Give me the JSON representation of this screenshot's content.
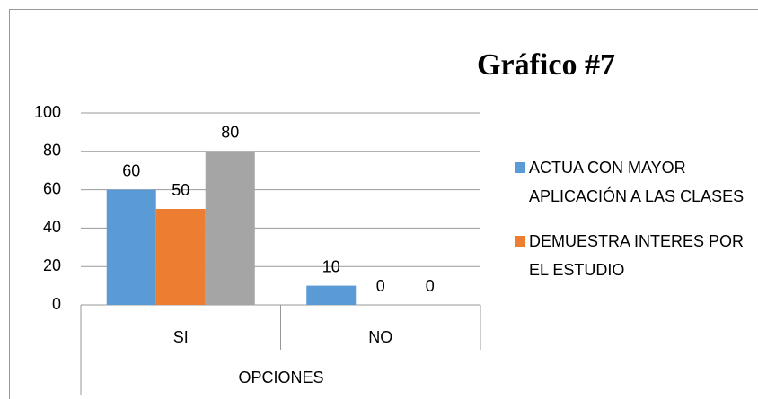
{
  "chart_data": {
    "type": "bar",
    "title": "Gráfico #7",
    "x_label": "OPCIONES",
    "categories": [
      "SI",
      "NO"
    ],
    "series": [
      {
        "name": "ACTUA CON MAYOR APLICACIÓN A LAS CLASES",
        "color": "#5b9bd5",
        "values": [
          60,
          10
        ]
      },
      {
        "name": "DEMUESTRA INTERES POR EL ESTUDIO",
        "color": "#ed7d31",
        "values": [
          50,
          0
        ]
      },
      {
        "name": null,
        "color": "#a5a5a5",
        "values": [
          80,
          0
        ]
      }
    ],
    "ylim": [
      0,
      100
    ],
    "yticks": [
      0,
      20,
      40,
      60,
      80,
      100
    ],
    "grid": true,
    "legend": "right"
  }
}
